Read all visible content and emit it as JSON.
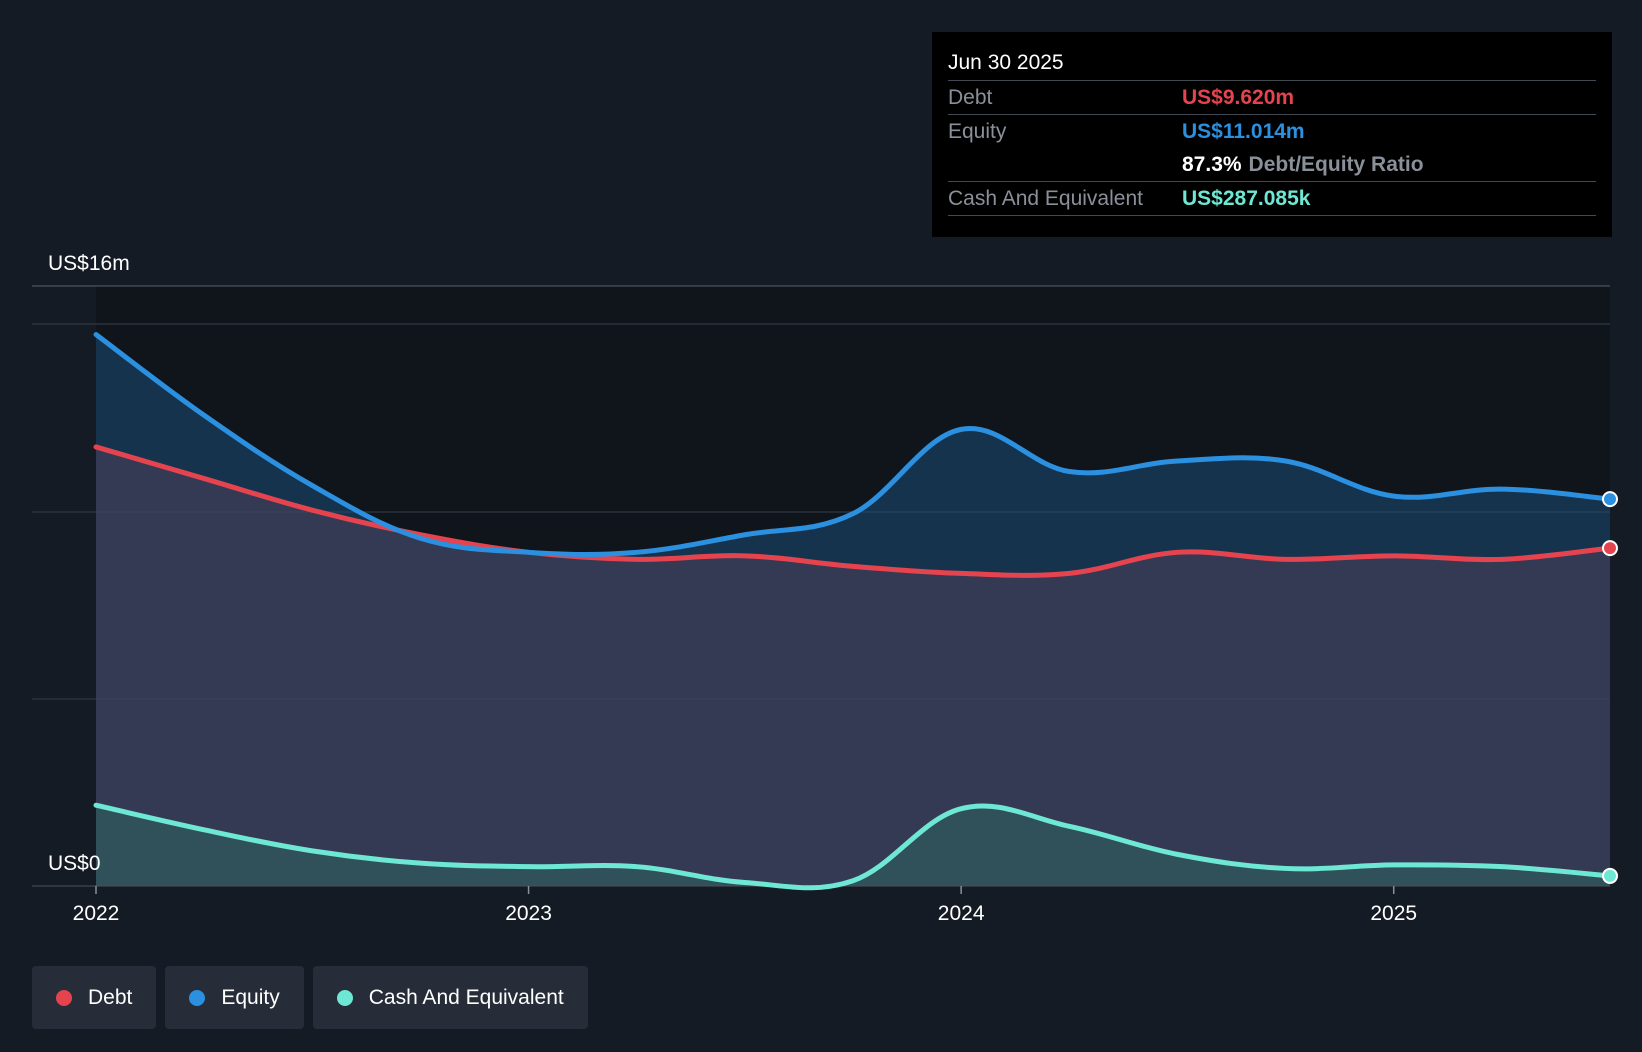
{
  "tooltip": {
    "date": "Jun 30 2025",
    "rows": {
      "debt": {
        "label": "Debt",
        "value": "US$9.620m"
      },
      "equity": {
        "label": "Equity",
        "value": "US$11.014m"
      },
      "ratio": {
        "value": "87.3%",
        "label": "Debt/Equity Ratio"
      },
      "cash": {
        "label": "Cash And Equivalent",
        "value": "US$287.085k"
      }
    }
  },
  "legend": {
    "items": [
      {
        "label": "Debt",
        "color": "#e5444f"
      },
      {
        "label": "Equity",
        "color": "#2b90e0"
      },
      {
        "label": "Cash And Equivalent",
        "color": "#6ee7d4"
      }
    ]
  },
  "chart_data": {
    "type": "area",
    "title": "",
    "ylabel_top": "US$16m",
    "ylabel_bottom": "US$0",
    "ylim": [
      0,
      16
    ],
    "x_ticks": [
      "2022",
      "2023",
      "2024",
      "2025"
    ],
    "x_tick_values": [
      2022.0,
      2023.0,
      2024.0,
      2025.0
    ],
    "xlim": [
      2022.0,
      2025.5
    ],
    "colors": {
      "debt": "#e5444f",
      "equity": "#2b90e0",
      "cash": "#6ee7d4"
    },
    "series": [
      {
        "name": "Debt",
        "x": [
          2022.0,
          2022.25,
          2022.5,
          2022.75,
          2023.0,
          2023.25,
          2023.5,
          2023.75,
          2024.0,
          2024.25,
          2024.5,
          2024.75,
          2025.0,
          2025.25,
          2025.5
        ],
        "values": [
          12.5,
          11.6,
          10.7,
          10.0,
          9.5,
          9.3,
          9.4,
          9.1,
          8.9,
          8.9,
          9.5,
          9.3,
          9.4,
          9.3,
          9.62
        ]
      },
      {
        "name": "Equity",
        "x": [
          2022.0,
          2022.25,
          2022.5,
          2022.75,
          2023.0,
          2023.25,
          2023.5,
          2023.75,
          2024.0,
          2024.25,
          2024.5,
          2024.75,
          2025.0,
          2025.25,
          2025.5
        ],
        "values": [
          15.7,
          13.4,
          11.4,
          9.9,
          9.5,
          9.5,
          10.0,
          10.6,
          13.0,
          11.8,
          12.1,
          12.1,
          11.1,
          11.3,
          11.014
        ]
      },
      {
        "name": "Cash And Equivalent",
        "x": [
          2022.0,
          2022.25,
          2022.5,
          2022.75,
          2023.0,
          2023.25,
          2023.5,
          2023.75,
          2024.0,
          2024.25,
          2024.5,
          2024.75,
          2025.0,
          2025.25,
          2025.5
        ],
        "values": [
          2.3,
          1.6,
          1.0,
          0.65,
          0.55,
          0.55,
          0.1,
          0.15,
          2.2,
          1.7,
          0.9,
          0.5,
          0.6,
          0.55,
          0.287
        ]
      }
    ]
  }
}
